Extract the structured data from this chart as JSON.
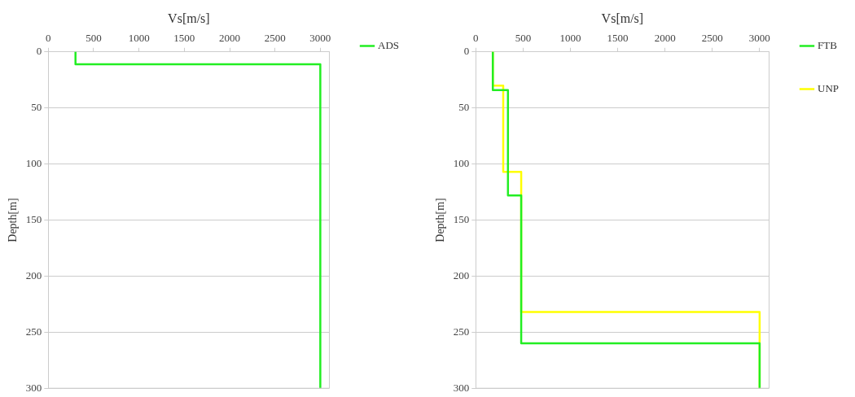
{
  "chart_data": [
    {
      "type": "line",
      "xlabel": "Vs[m/s]",
      "ylabel": "Depth[m]",
      "xlim": [
        0,
        3100
      ],
      "xticks": [
        0,
        500,
        1000,
        1500,
        2000,
        2500,
        3000
      ],
      "ylim": [
        300,
        0
      ],
      "yticks": [
        0,
        50,
        100,
        150,
        200,
        250,
        300
      ],
      "grid": "y",
      "legend": "right",
      "marker": "none",
      "line_style": "solid",
      "series": [
        {
          "name": "ADS",
          "color": "#22ee22",
          "x": [
            300,
            300,
            3000,
            3000
          ],
          "values": [
            0,
            11,
            11,
            300
          ]
        }
      ]
    },
    {
      "type": "line",
      "xlabel": "Vs[m/s]",
      "ylabel": "Depth[m]",
      "xlim": [
        0,
        3100
      ],
      "xticks": [
        0,
        500,
        1000,
        1500,
        2000,
        2500,
        3000
      ],
      "ylim": [
        300,
        0
      ],
      "yticks": [
        0,
        50,
        100,
        150,
        200,
        250,
        300
      ],
      "grid": "y",
      "legend": "right",
      "marker": "none",
      "line_style": "solid",
      "series": [
        {
          "name": "FTB",
          "color": "#22ee22",
          "x": [
            180,
            180,
            340,
            340,
            480,
            480,
            3000,
            3000
          ],
          "values": [
            0,
            34,
            34,
            128,
            128,
            260,
            260,
            300
          ]
        },
        {
          "name": "UNP",
          "color": "#ffff00",
          "x": [
            180,
            180,
            290,
            290,
            480,
            480,
            3000,
            3000
          ],
          "values": [
            0,
            30,
            30,
            107,
            107,
            232,
            232,
            300
          ]
        }
      ]
    }
  ]
}
